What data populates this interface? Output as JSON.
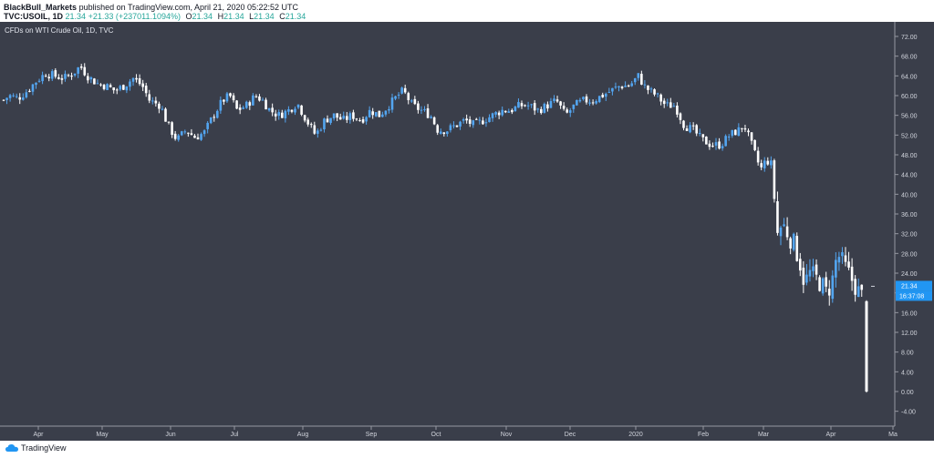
{
  "header": {
    "author": "BlackBull_Markets",
    "published": "published on TradingView.com, April 21, 2020 05:22:52 UTC",
    "symbol": "TVC:USOIL, 1D",
    "last": "21.34",
    "change": "+21.33 (+237011.1094%)",
    "o_label": "O",
    "o": "21.34",
    "h_label": "H",
    "h": "21.34",
    "l_label": "L",
    "l": "21.34",
    "c_label": "C",
    "c": "21.34"
  },
  "chart_data": {
    "type": "candlestick",
    "title": "CFDs on WTI Crude Oil, 1D, TVC",
    "ylim": [
      -6,
      75
    ],
    "y_ticks": [
      -4,
      0,
      4,
      8,
      12,
      16,
      20,
      24,
      28,
      32,
      36,
      40,
      44,
      48,
      52,
      56,
      60,
      64,
      68,
      72
    ],
    "y_tick_labels": [
      "-4.00",
      "0.00",
      "4.00",
      "8.00",
      "12.00",
      "16.00",
      "20.00",
      "24.00",
      "28.00",
      "32.00",
      "36.00",
      "40.00",
      "44.00",
      "48.00",
      "52.00",
      "56.00",
      "60.00",
      "64.00",
      "68.00",
      "72.00"
    ],
    "x_labels": [
      "Apr",
      "May",
      "Jun",
      "Jul",
      "Aug",
      "Sep",
      "Oct",
      "Nov",
      "Dec",
      "2020",
      "Feb",
      "Mar",
      "Apr",
      "Ma"
    ],
    "price_label": "21.34",
    "countdown_label": "16:37:08",
    "up_color": "#53a5f0",
    "down_color": "#ffffff",
    "background": "#3a3e4a",
    "close_path": [
      [
        0,
        58.5
      ],
      [
        10,
        60
      ],
      [
        20,
        59.5
      ],
      [
        30,
        61
      ],
      [
        40,
        63
      ],
      [
        50,
        64.5
      ],
      [
        60,
        64
      ],
      [
        70,
        63.5
      ],
      [
        80,
        64.5
      ],
      [
        88,
        66
      ],
      [
        96,
        64
      ],
      [
        106,
        62.5
      ],
      [
        116,
        62
      ],
      [
        126,
        61
      ],
      [
        136,
        62
      ],
      [
        146,
        63.5
      ],
      [
        156,
        62
      ],
      [
        164,
        59
      ],
      [
        176,
        58
      ],
      [
        184,
        54
      ],
      [
        194,
        51
      ],
      [
        204,
        53
      ],
      [
        214,
        51.5
      ],
      [
        224,
        52.5
      ],
      [
        234,
        56
      ],
      [
        244,
        59
      ],
      [
        252,
        60
      ],
      [
        260,
        57
      ],
      [
        270,
        58
      ],
      [
        280,
        60
      ],
      [
        288,
        59
      ],
      [
        296,
        57
      ],
      [
        306,
        56
      ],
      [
        316,
        57
      ],
      [
        326,
        58.5
      ],
      [
        336,
        55
      ],
      [
        346,
        52
      ],
      [
        356,
        55
      ],
      [
        366,
        56
      ],
      [
        376,
        55
      ],
      [
        386,
        56
      ],
      [
        396,
        55
      ],
      [
        406,
        57
      ],
      [
        416,
        56
      ],
      [
        426,
        58
      ],
      [
        436,
        60
      ],
      [
        442,
        61
      ],
      [
        452,
        58
      ],
      [
        462,
        57
      ],
      [
        472,
        56
      ],
      [
        480,
        53
      ],
      [
        490,
        53
      ],
      [
        500,
        54
      ],
      [
        510,
        55
      ],
      [
        520,
        54
      ],
      [
        530,
        55
      ],
      [
        540,
        56
      ],
      [
        550,
        57
      ],
      [
        560,
        57
      ],
      [
        570,
        58
      ],
      [
        580,
        58
      ],
      [
        590,
        57
      ],
      [
        600,
        58
      ],
      [
        610,
        59
      ],
      [
        620,
        56
      ],
      [
        630,
        58
      ],
      [
        640,
        59
      ],
      [
        650,
        59
      ],
      [
        660,
        60
      ],
      [
        670,
        61
      ],
      [
        680,
        62
      ],
      [
        690,
        62
      ],
      [
        700,
        64
      ],
      [
        706,
        62
      ],
      [
        712,
        61
      ],
      [
        720,
        60
      ],
      [
        730,
        58
      ],
      [
        740,
        58
      ],
      [
        750,
        54
      ],
      [
        760,
        53
      ],
      [
        770,
        51
      ],
      [
        780,
        50
      ],
      [
        790,
        50
      ],
      [
        800,
        52
      ],
      [
        810,
        53
      ],
      [
        816,
        54
      ],
      [
        822,
        51
      ],
      [
        828,
        48
      ],
      [
        834,
        45
      ],
      [
        840,
        47
      ],
      [
        846,
        46
      ],
      [
        852,
        32
      ],
      [
        858,
        34
      ],
      [
        864,
        32
      ],
      [
        870,
        30
      ],
      [
        876,
        27
      ],
      [
        882,
        22
      ],
      [
        888,
        24
      ],
      [
        894,
        23
      ],
      [
        900,
        22
      ],
      [
        906,
        20
      ],
      [
        912,
        22
      ],
      [
        918,
        28
      ],
      [
        924,
        26
      ],
      [
        930,
        24
      ],
      [
        936,
        22
      ],
      [
        942,
        20
      ],
      [
        946,
        19
      ],
      [
        950,
        18
      ]
    ],
    "crash": {
      "open": 18.3,
      "close": 0,
      "high": 18.5,
      "low": -0.2
    }
  },
  "footer": {
    "brand": "TradingView"
  }
}
